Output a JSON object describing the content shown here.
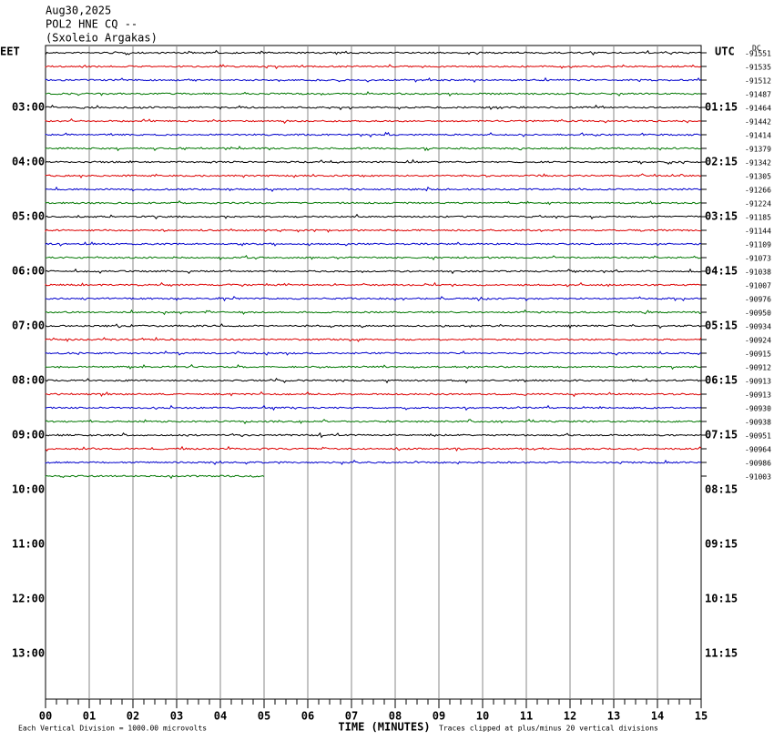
{
  "header": {
    "date": "Aug30,2025",
    "station": "POL2 HNE CQ --",
    "site": "(Sxoleio Argakas)"
  },
  "left_zone": "EET",
  "right_zone": "UTC",
  "dc_header": "DC",
  "left_times": [
    "03:00",
    "04:00",
    "05:00",
    "06:00",
    "07:00",
    "08:00",
    "09:00",
    "10:00",
    "11:00",
    "12:00",
    "13:00"
  ],
  "right_times": [
    "01:15",
    "02:15",
    "03:15",
    "04:15",
    "05:15",
    "06:15",
    "07:15",
    "08:15",
    "09:15",
    "10:15",
    "11:15"
  ],
  "dc_offsets": [
    "-91551",
    "-91535",
    "-91512",
    "-91487",
    "-91464",
    "-91442",
    "-91414",
    "-91379",
    "-91342",
    "-91305",
    "-91266",
    "-91224",
    "-91185",
    "-91144",
    "-91109",
    "-91073",
    "-91038",
    "-91007",
    "-90976",
    "-90950",
    "-90934",
    "-90924",
    "-90915",
    "-90912",
    "-90913",
    "-90913",
    "-90930",
    "-90938",
    "-90951",
    "-90964",
    "-90986",
    "-91003"
  ],
  "x_labels": [
    "00",
    "01",
    "02",
    "03",
    "04",
    "05",
    "06",
    "07",
    "08",
    "09",
    "10",
    "11",
    "12",
    "13",
    "14",
    "15"
  ],
  "x_title": "TIME (MINUTES)",
  "footer_left": "Each Vertical Division = 1000.00 microvolts",
  "footer_right": "Traces clipped at plus/minus 20 vertical divisions"
}
